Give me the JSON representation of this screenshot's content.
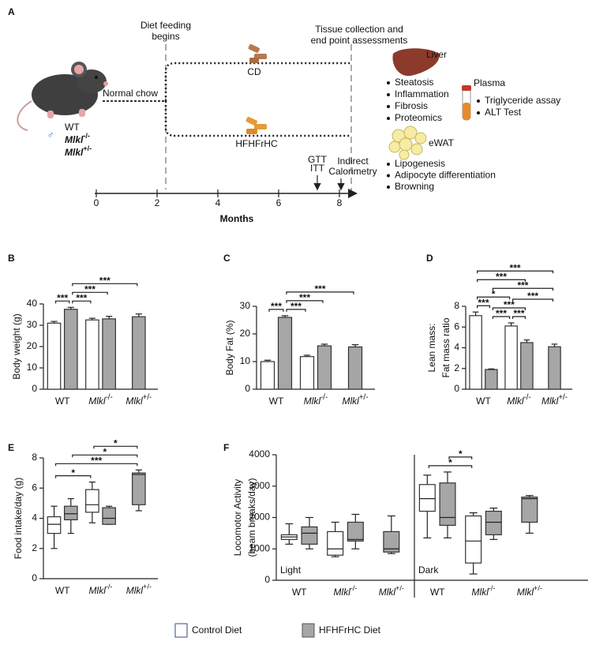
{
  "panel_a": {
    "label": "A",
    "diet_start": [
      "Diet feeding",
      "begins"
    ],
    "endpoint": [
      "Tissue collection and",
      "end point assessments"
    ],
    "normal_chow": "Normal chow",
    "sex_symbol": "♂",
    "genotypes": [
      {
        "name": "WT"
      },
      {
        "name": "Mlkl",
        "sup": "-/-"
      },
      {
        "name": "Mlkl",
        "sup": "+/-"
      }
    ],
    "diets": [
      "CD",
      "HFHFrHC"
    ],
    "tests": [
      "GTT",
      "ITT"
    ],
    "calorimetry": [
      "Indirect",
      "Calorimetry"
    ],
    "timeline": {
      "xlim": [
        0,
        8
      ],
      "xticks": [
        0,
        2,
        4,
        6,
        8
      ],
      "xlabel": "Months"
    },
    "liver": {
      "title": "Liver",
      "items": [
        "Steatosis",
        "Inflammation",
        "Fibrosis",
        "Proteomics"
      ]
    },
    "plasma": {
      "title": "Plasma",
      "items": [
        "Triglyceride assay",
        "ALT Test"
      ]
    },
    "ewat": {
      "title": "eWAT",
      "items": [
        "Lipogenesis",
        "Adipocyte differentiation",
        "Browning"
      ]
    }
  },
  "chart_data": [
    {
      "panel": "B",
      "type": "bar",
      "ylabel": [
        "Body weight (g)"
      ],
      "categories": [
        {
          "name": "WT"
        },
        {
          "name": "Mlkl",
          "sup": "-/-"
        },
        {
          "name": "Mlkl",
          "sup": "+/-"
        }
      ],
      "series": [
        {
          "name": "Control Diet",
          "color": "#ffffff",
          "values": [
            31,
            32.5,
            null
          ],
          "errors": [
            0.8,
            0.8,
            null
          ]
        },
        {
          "name": "HFHFrHC Diet",
          "color": "#a6a6a6",
          "values": [
            37.5,
            33,
            34
          ],
          "errors": [
            0.9,
            1.2,
            1.3
          ]
        }
      ],
      "ylim": [
        0,
        40
      ],
      "yticks": [
        0,
        10,
        20,
        30,
        40
      ],
      "significance": [
        {
          "label": "***",
          "from": [
            0,
            0
          ],
          "to": [
            1,
            0
          ]
        },
        {
          "label": "***",
          "from": [
            1,
            0
          ],
          "to": [
            0,
            1
          ]
        },
        {
          "label": "***",
          "from": [
            1,
            0
          ],
          "to": [
            1,
            1
          ]
        },
        {
          "label": "***",
          "from": [
            1,
            0
          ],
          "to": [
            1,
            2
          ]
        }
      ]
    },
    {
      "panel": "C",
      "type": "bar",
      "ylabel": [
        "Body Fat (%)"
      ],
      "categories": [
        {
          "name": "WT"
        },
        {
          "name": "Mlkl",
          "sup": "-/-"
        },
        {
          "name": "Mlkl",
          "sup": "+/-"
        }
      ],
      "series": [
        {
          "color": "#ffffff",
          "values": [
            10,
            11.8,
            null
          ],
          "errors": [
            0.5,
            0.5,
            null
          ]
        },
        {
          "color": "#a6a6a6",
          "values": [
            26,
            15.7,
            15.3
          ],
          "errors": [
            0.6,
            0.6,
            0.8
          ]
        }
      ],
      "ylim": [
        0,
        30
      ],
      "yticks": [
        0,
        10,
        20,
        30
      ],
      "significance": [
        {
          "label": "***",
          "from": [
            0,
            0
          ],
          "to": [
            1,
            0
          ]
        },
        {
          "label": "***",
          "from": [
            1,
            0
          ],
          "to": [
            0,
            1
          ]
        },
        {
          "label": "***",
          "from": [
            1,
            0
          ],
          "to": [
            1,
            1
          ]
        },
        {
          "label": "***",
          "from": [
            1,
            0
          ],
          "to": [
            1,
            2
          ]
        }
      ]
    },
    {
      "panel": "D",
      "type": "bar",
      "ylabel": [
        "Lean mass:",
        "Fat mass ratio"
      ],
      "categories": [
        {
          "name": "WT"
        },
        {
          "name": "Mlkl",
          "sup": "-/-"
        },
        {
          "name": "Mlkl",
          "sup": "+/-"
        }
      ],
      "series": [
        {
          "color": "#ffffff",
          "values": [
            7.1,
            6.1,
            null
          ],
          "errors": [
            0.35,
            0.3,
            null
          ]
        },
        {
          "color": "#a6a6a6",
          "values": [
            1.9,
            4.5,
            4.1
          ],
          "errors": [
            0.06,
            0.25,
            0.25
          ]
        }
      ],
      "ylim": [
        0,
        8
      ],
      "yticks": [
        0,
        2,
        4,
        6,
        8
      ],
      "significance": [
        {
          "label": "***",
          "from": [
            0,
            0
          ],
          "to": [
            1,
            0
          ]
        },
        {
          "label": "***",
          "from": [
            1,
            0
          ],
          "to": [
            0,
            1
          ]
        },
        {
          "label": "***",
          "from": [
            0,
            1
          ],
          "to": [
            1,
            1
          ]
        },
        {
          "label": "***",
          "from": [
            1,
            0
          ],
          "to": [
            1,
            1
          ]
        },
        {
          "label": "***",
          "from": [
            0,
            1
          ],
          "to": [
            1,
            2
          ]
        },
        {
          "label": "*",
          "from": [
            0,
            0
          ],
          "to": [
            0,
            1
          ]
        },
        {
          "label": "***",
          "from": [
            1,
            0
          ],
          "to": [
            1,
            2
          ]
        },
        {
          "label": "***",
          "from": [
            0,
            0
          ],
          "to": [
            1,
            1
          ]
        },
        {
          "label": "***",
          "from": [
            0,
            0
          ],
          "to": [
            1,
            2
          ]
        }
      ]
    },
    {
      "panel": "E",
      "type": "box",
      "ylabel": [
        "Food intake/day (g)"
      ],
      "categories": [
        {
          "name": "WT"
        },
        {
          "name": "Mlkl",
          "sup": "-/-"
        },
        {
          "name": "Mlkl",
          "sup": "+/-"
        }
      ],
      "series": [
        {
          "color": "#ffffff",
          "min": [
            2,
            3.7,
            null
          ],
          "q1": [
            3,
            4.4,
            null
          ],
          "median": [
            3.6,
            4.9,
            null
          ],
          "q3": [
            4.1,
            5.9,
            null
          ],
          "max": [
            4.8,
            6.4,
            null
          ]
        },
        {
          "color": "#a6a6a6",
          "min": [
            3,
            3.6,
            4.5
          ],
          "q1": [
            3.9,
            3.6,
            4.9
          ],
          "median": [
            4.3,
            4,
            6.9
          ],
          "q3": [
            4.8,
            4.7,
            7
          ],
          "max": [
            5.3,
            4.8,
            7.2
          ]
        }
      ],
      "ylim": [
        0,
        8
      ],
      "yticks": [
        0,
        2,
        4,
        6,
        8
      ],
      "significance": [
        {
          "label": "*",
          "from": [
            0,
            0
          ],
          "to": [
            0,
            1
          ]
        },
        {
          "label": "***",
          "from": [
            0,
            0
          ],
          "to": [
            1,
            2
          ]
        },
        {
          "label": "*",
          "from": [
            1,
            0
          ],
          "to": [
            1,
            2
          ]
        },
        {
          "label": "*",
          "from": [
            0,
            1
          ],
          "to": [
            1,
            2
          ]
        }
      ]
    },
    {
      "panel": "F",
      "type": "box",
      "ylabel": [
        "Locomotor Activity",
        "(beam breaks/day)"
      ],
      "ylim": [
        0,
        4000
      ],
      "yticks": [
        0,
        1000,
        2000,
        3000,
        4000
      ],
      "groups": [
        {
          "label": "Light",
          "categories": [
            {
              "name": "WT"
            },
            {
              "name": "Mlkl",
              "sup": "-/-"
            },
            {
              "name": "Mlkl",
              "sup": "+/-"
            }
          ],
          "series": [
            {
              "color": "#ffffff",
              "min": [
                1150,
                750,
                null
              ],
              "q1": [
                1300,
                800,
                null
              ],
              "median": [
                1380,
                1000,
                null
              ],
              "q3": [
                1450,
                1550,
                null
              ],
              "max": [
                1800,
                1850,
                null
              ]
            },
            {
              "color": "#a6a6a6",
              "min": [
                1000,
                1000,
                850
              ],
              "q1": [
                1150,
                1250,
                900
              ],
              "median": [
                1500,
                1300,
                1000
              ],
              "q3": [
                1700,
                1850,
                1550
              ],
              "max": [
                2000,
                2100,
                2050
              ]
            }
          ]
        },
        {
          "label": "Dark",
          "categories": [
            {
              "name": "WT"
            },
            {
              "name": "Mlkl",
              "sup": "-/-"
            },
            {
              "name": "Mlkl",
              "sup": "+/-"
            }
          ],
          "series": [
            {
              "color": "#ffffff",
              "min": [
                1350,
                200,
                null
              ],
              "q1": [
                2200,
                550,
                null
              ],
              "median": [
                2600,
                1250,
                null
              ],
              "q3": [
                3050,
                2050,
                null
              ],
              "max": [
                3350,
                2150,
                null
              ]
            },
            {
              "color": "#a6a6a6",
              "min": [
                1350,
                1300,
                1500
              ],
              "q1": [
                1750,
                1450,
                1850
              ],
              "median": [
                2000,
                1850,
                2600
              ],
              "q3": [
                3100,
                2200,
                2650
              ],
              "max": [
                3450,
                2300,
                2700
              ]
            }
          ],
          "significance": [
            {
              "label": "*",
              "from": [
                0,
                0
              ],
              "to": [
                0,
                1
              ]
            },
            {
              "label": "*",
              "from": [
                1,
                0
              ],
              "to": [
                0,
                1
              ]
            }
          ]
        }
      ]
    }
  ]
}
